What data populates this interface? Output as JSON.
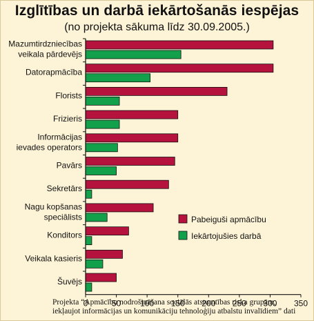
{
  "chart_data": {
    "type": "bar",
    "orientation": "horizontal",
    "title": "Izglītības un darbā iekārtošanās iespējas",
    "subtitle": "(no projekta sākuma līdz 30.09.2005.)",
    "categories": [
      [
        "Mazumtirdzniecības",
        "veikala pārdevējs"
      ],
      [
        "Datorapmācība"
      ],
      [
        "Florists"
      ],
      [
        "Frizieris"
      ],
      [
        "Informācijas",
        "ievades operators"
      ],
      [
        "Pavārs"
      ],
      [
        "Sekretārs"
      ],
      [
        "Nagu kopšanas",
        "speciālists"
      ],
      [
        "Konditors"
      ],
      [
        "Veikala kasieris"
      ],
      [
        "Šuvējs"
      ]
    ],
    "series": [
      {
        "name": "Pabeiguši apmācību",
        "color": "#b5123e",
        "values": [
          305,
          305,
          230,
          150,
          150,
          145,
          135,
          110,
          70,
          60,
          50
        ]
      },
      {
        "name": "Iekārtojušies darbā",
        "color": "#12a14a",
        "values": [
          155,
          105,
          55,
          55,
          52,
          50,
          10,
          35,
          10,
          28,
          10
        ]
      }
    ],
    "xlim": [
      0,
      350
    ],
    "xticks": [
      0,
      50,
      100,
      150,
      200,
      250,
      300,
      350
    ],
    "grid": false,
    "legend_position": "lower-right"
  },
  "footnote": {
    "line1": "Projekta “Apmācību nodrošināšana sociālās atstumtības riska grupām,",
    "line2": "iekļaujot informācijas un komunikāciju tehnoloģiju atbalstu invalīdiem” dati"
  }
}
